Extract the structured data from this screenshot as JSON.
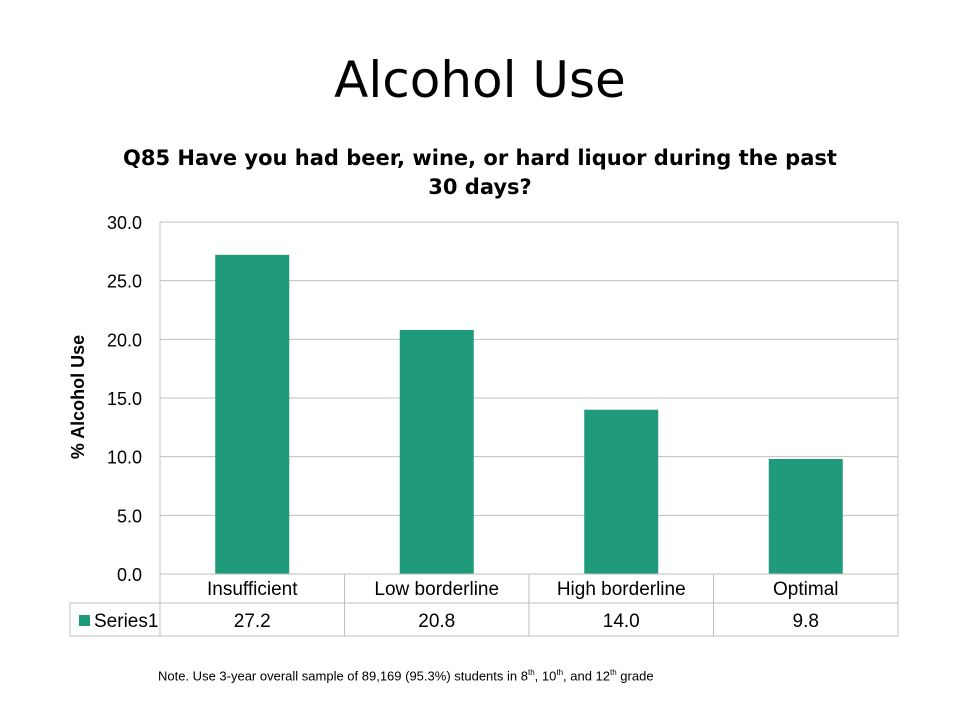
{
  "slide": {
    "title": "Alcohol Use"
  },
  "note": {
    "text_1": "Note. Use 3-year overall sample of 89,169 (95.3%) students in 8",
    "sup_1": "th",
    "text_2": ", 10",
    "sup_2": "th",
    "text_3": ", and 12",
    "sup_3": "th",
    "text_4": " grade"
  },
  "chart_data": {
    "type": "bar",
    "title": "Q85 Have you had beer, wine, or hard liquor during the past 30 days?",
    "xlabel": "",
    "ylabel": "% Alcohol Use",
    "categories": [
      "Insufficient",
      "Low borderline",
      "High borderline",
      "Optimal"
    ],
    "series": [
      {
        "name": "Series1",
        "values": [
          27.2,
          20.8,
          14.0,
          9.8
        ],
        "value_labels": [
          "27.2",
          "20.8",
          "14.0",
          "9.8"
        ],
        "color": "#1f9a7a"
      }
    ],
    "ylim": [
      0,
      30
    ],
    "yticks": [
      0,
      5,
      10,
      15,
      20,
      25,
      30
    ],
    "ytick_labels": [
      "0.0",
      "5.0",
      "10.0",
      "15.0",
      "20.0",
      "25.0",
      "30.0"
    ],
    "grid": true,
    "data_table": true,
    "legend": "data-table"
  }
}
